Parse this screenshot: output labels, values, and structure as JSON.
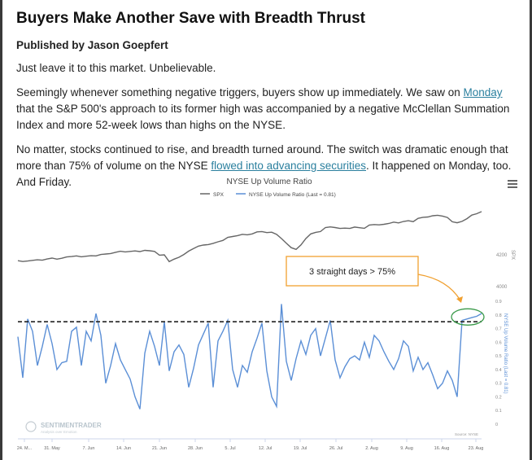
{
  "article": {
    "title": "Buyers Make Another Save with Breadth Thrust",
    "byline": "Published by Jason Goepfert",
    "p1": "Just leave it to this market. Unbelievable.",
    "p2_a": "Seemingly whenever something negative triggers, buyers show up immediately. We saw on ",
    "p2_link": "Monday",
    "p2_b": " that the S&P 500's approach to its former high was accompanied by a negative McClellan Summation Index and more 52-week lows than highs on the NYSE.",
    "p3_a": "No matter, stocks continued to rise, and breadth turned around. The switch was dramatic enough that more than 75% of volume on the NYSE ",
    "p3_link": "flowed into advancing securities",
    "p3_b": ". It happened on Monday, too. And Friday."
  },
  "chart_data": {
    "type": "line",
    "title": "NYSE Up Volume Ratio",
    "legend": [
      "SPX",
      "NYSE Up Volume Ratio (Last = 0.81)"
    ],
    "legend_position": "top-center",
    "annotation": "3 straight days > 75%",
    "watermark": "SENTIMENTRADER",
    "watermark_sub": "Analysis over Emotion",
    "source": "Source: NYSE",
    "x_ticks": [
      "24. M...",
      "31. May",
      "7. Jun",
      "14. Jun",
      "21. Jun",
      "28. Jun",
      "5. Jul",
      "12. Jul",
      "19. Jul",
      "26. Jul",
      "2. Aug",
      "9. Aug",
      "16. Aug",
      "23. Aug"
    ],
    "spx_axis": {
      "label": "SPX",
      "ticks": [
        "4200",
        "4000"
      ]
    },
    "ratio_axis": {
      "label": "NYSE Up Volume Ratio (Last = 0.81)",
      "ticks": [
        "0.9",
        "0.8",
        "0.7",
        "0.6",
        "0.5",
        "0.4",
        "0.3",
        "0.2",
        "0.1",
        "0"
      ],
      "ylim": [
        0,
        0.9
      ]
    },
    "threshold": 0.75,
    "colors": {
      "spx": "#666666",
      "ratio": "#5b8fd6",
      "threshold": "#222222",
      "annotation": "#f0a030",
      "highlight": "#3a9a4a"
    },
    "series": [
      {
        "name": "SPX",
        "values": [
          4188,
          4183,
          4186,
          4190,
          4194,
          4191,
          4199,
          4205,
          4198,
          4204,
          4212,
          4215,
          4219,
          4213,
          4217,
          4220,
          4219,
          4228,
          4231,
          4234,
          4242,
          4249,
          4245,
          4248,
          4251,
          4247,
          4255,
          4252,
          4248,
          4224,
          4226,
          4182,
          4198,
          4210,
          4228,
          4250,
          4267,
          4282,
          4289,
          4292,
          4300,
          4310,
          4319,
          4339,
          4344,
          4350,
          4358,
          4355,
          4361,
          4374,
          4376,
          4369,
          4372,
          4358,
          4331,
          4301,
          4272,
          4261,
          4290,
          4331,
          4361,
          4371,
          4376,
          4402,
          4406,
          4402,
          4396,
          4398,
          4396,
          4405,
          4401,
          4397,
          4418,
          4421,
          4419,
          4423,
          4428,
          4437,
          4432,
          4441,
          4446,
          4440,
          4461,
          4468,
          4470,
          4478,
          4481,
          4476,
          4467,
          4439,
          4433,
          4442,
          4459,
          4482,
          4491,
          4505
        ]
      },
      {
        "name": "NYSE Up Volume Ratio",
        "values": [
          0.64,
          0.34,
          0.77,
          0.68,
          0.43,
          0.57,
          0.73,
          0.59,
          0.4,
          0.45,
          0.46,
          0.68,
          0.71,
          0.43,
          0.68,
          0.61,
          0.81,
          0.65,
          0.3,
          0.43,
          0.59,
          0.47,
          0.4,
          0.33,
          0.2,
          0.11,
          0.52,
          0.68,
          0.57,
          0.43,
          0.75,
          0.39,
          0.53,
          0.58,
          0.51,
          0.27,
          0.41,
          0.58,
          0.66,
          0.74,
          0.27,
          0.61,
          0.68,
          0.76,
          0.4,
          0.27,
          0.43,
          0.38,
          0.53,
          0.63,
          0.74,
          0.39,
          0.2,
          0.13,
          0.88,
          0.46,
          0.32,
          0.48,
          0.61,
          0.51,
          0.65,
          0.7,
          0.5,
          0.63,
          0.76,
          0.47,
          0.34,
          0.42,
          0.48,
          0.5,
          0.47,
          0.6,
          0.49,
          0.65,
          0.61,
          0.53,
          0.46,
          0.4,
          0.48,
          0.61,
          0.57,
          0.39,
          0.49,
          0.4,
          0.45,
          0.36,
          0.26,
          0.3,
          0.39,
          0.32,
          0.2,
          0.76,
          0.77,
          0.78,
          0.79,
          0.81
        ]
      }
    ]
  }
}
